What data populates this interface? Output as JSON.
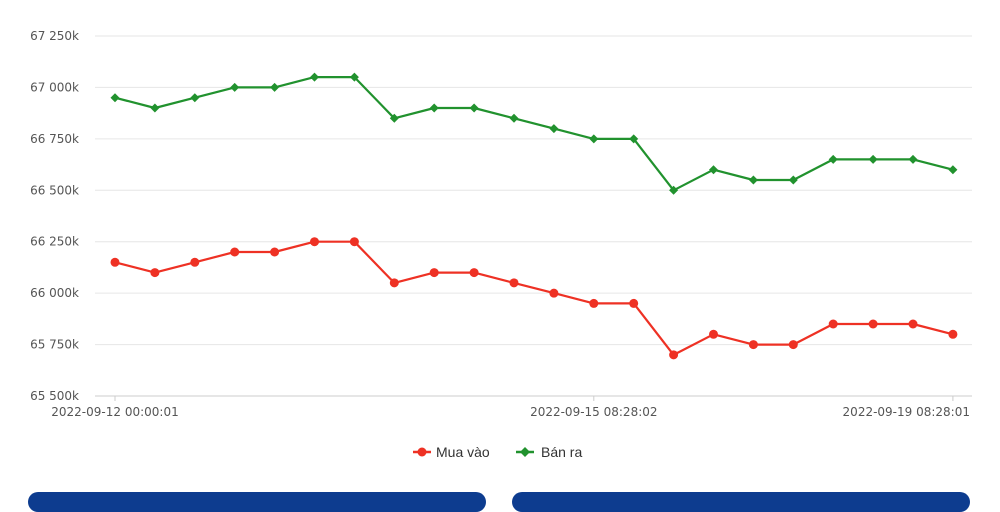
{
  "chart_data": {
    "type": "line",
    "y_tick_labels": [
      "65 500k",
      "65 750k",
      "66 000k",
      "66 250k",
      "66 500k",
      "66 750k",
      "67 000k",
      "67 250k"
    ],
    "y_ticks": [
      65500,
      65750,
      66000,
      66250,
      66500,
      66750,
      67000,
      67250
    ],
    "ylim": [
      65500,
      67250
    ],
    "x_tick_labels": [
      {
        "label": "2022-09-12 00:00:01",
        "index": 0
      },
      {
        "label": "2022-09-15 08:28:02",
        "index": 12
      },
      {
        "label": "2022-09-19 08:28:01",
        "index": 21
      }
    ],
    "point_count": 22,
    "series": [
      {
        "name": "Mua vào",
        "color": "#ee3124",
        "marker": "circle",
        "values": [
          66150,
          66100,
          66150,
          66200,
          66200,
          66250,
          66250,
          66050,
          66100,
          66100,
          66050,
          66000,
          65950,
          65950,
          65700,
          65800,
          65750,
          65750,
          65850,
          65850,
          65850,
          65800
        ]
      },
      {
        "name": "Bán ra",
        "color": "#21922e",
        "marker": "diamond",
        "values": [
          66950,
          66900,
          66950,
          67000,
          67000,
          67050,
          67050,
          66850,
          66900,
          66900,
          66850,
          66800,
          66750,
          66750,
          66500,
          66600,
          66550,
          66550,
          66650,
          66650,
          66650,
          66600
        ]
      }
    ],
    "grid": true,
    "legend_position": "bottom-center"
  },
  "colors": {
    "grid": "#e6e6e6",
    "axis": "#cccccc",
    "bottom_bar": "#0d3c8f"
  }
}
